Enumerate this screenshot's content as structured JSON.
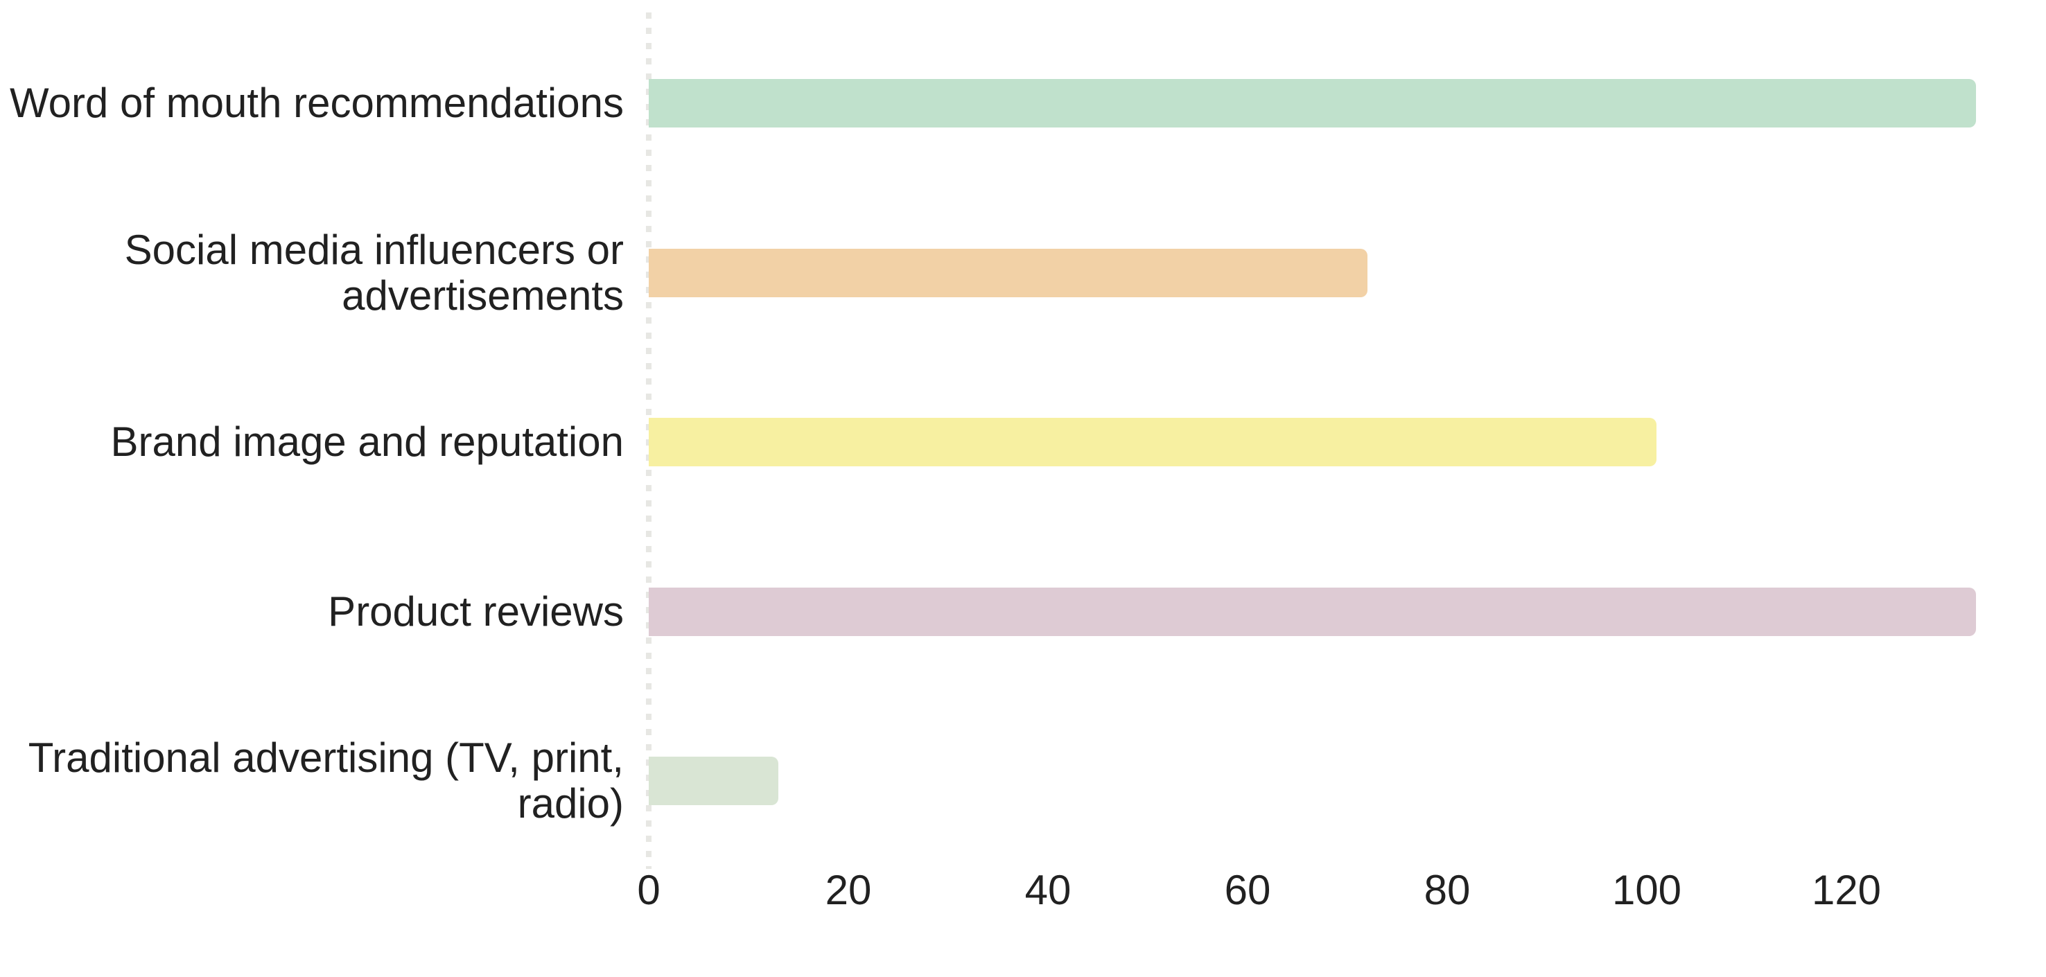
{
  "chart_data": {
    "type": "bar",
    "orientation": "horizontal",
    "title": "",
    "xlabel": "",
    "ylabel": "",
    "categories": [
      "Word of mouth recommendations",
      "Social media influencers or advertisements",
      "Brand image and reputation",
      "Product reviews",
      "Traditional advertising (TV, print, radio)"
    ],
    "category_lines": [
      [
        "Word of mouth recommendations"
      ],
      [
        "Social media influencers or",
        "advertisements"
      ],
      [
        "Brand image and reputation"
      ],
      [
        "Product reviews"
      ],
      [
        "Traditional advertising (TV, print,",
        "radio)"
      ]
    ],
    "values": [
      133,
      72,
      101,
      133,
      13
    ],
    "bar_colors": [
      "#c0e1cc",
      "#f2d1a6",
      "#f7f0a1",
      "#decbd4",
      "#d9e5d4"
    ],
    "xlim": [
      0,
      140
    ],
    "x_ticks": [
      0,
      20,
      40,
      60,
      80,
      100,
      120
    ],
    "grid": false,
    "legend": false,
    "zero_axis_line": "dotted",
    "zero_axis_color": "#e7e7e3",
    "text_color": "#212121",
    "background_color": "#ffffff"
  }
}
